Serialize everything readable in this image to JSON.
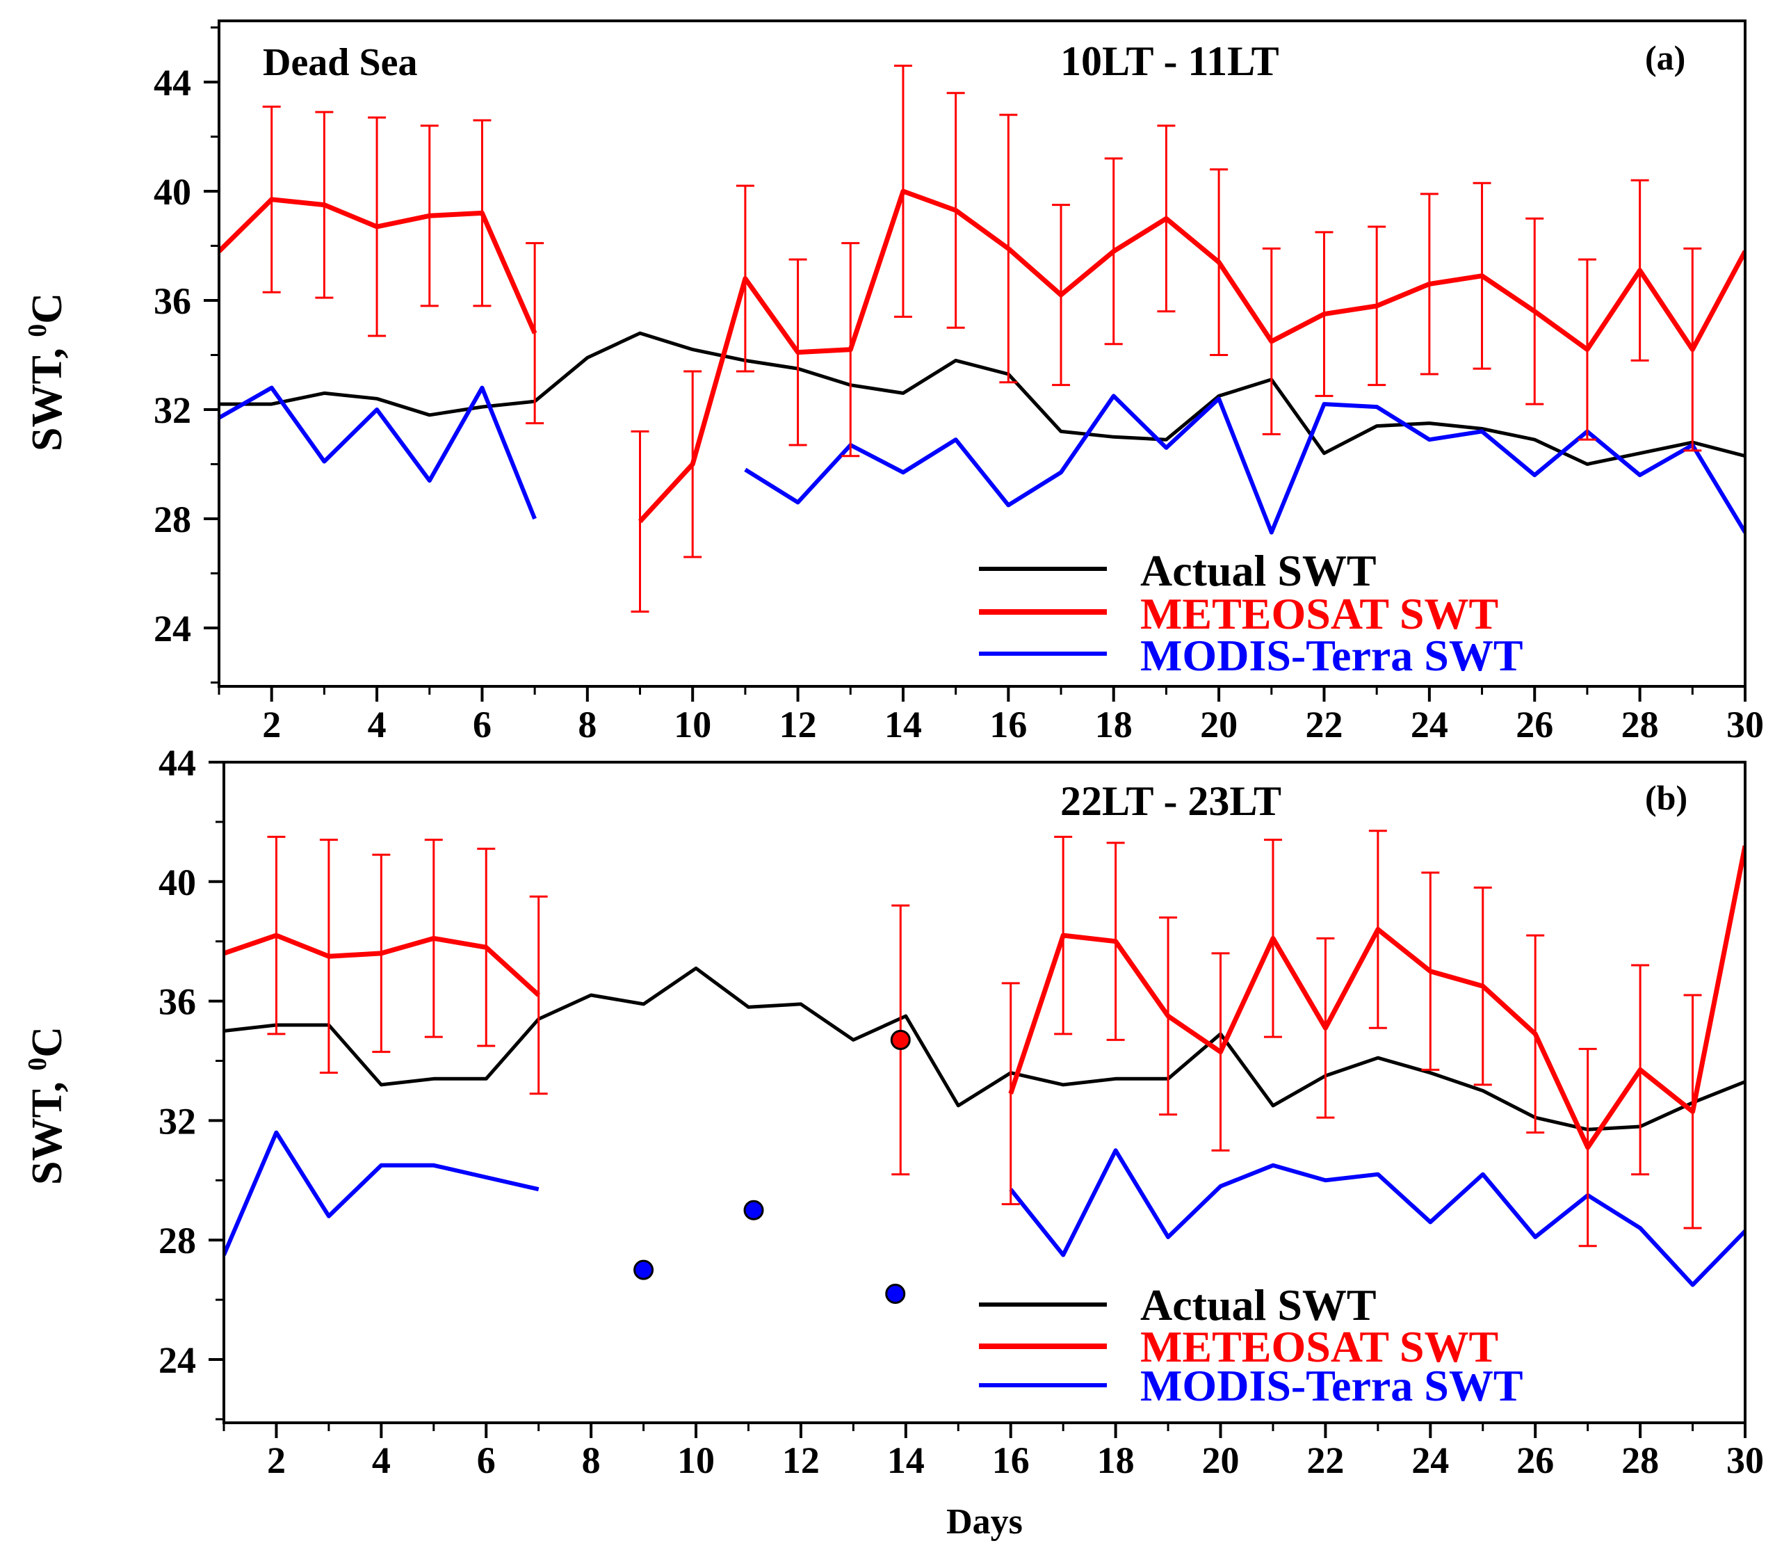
{
  "chart_data": [
    {
      "type": "line",
      "panel_label": "(a)",
      "site_label": "Dead Sea",
      "time_label": "10LT - 11LT",
      "xlabel": "",
      "ylabel": "SWT, °C",
      "ylabel_main": "SWT, ",
      "ylabel_degree": "0",
      "ylabel_unit": "C",
      "xlim": [
        1,
        30
      ],
      "ylim": [
        22,
        46
      ],
      "x_ticks": [
        2,
        4,
        6,
        8,
        10,
        12,
        14,
        16,
        18,
        20,
        22,
        24,
        26,
        28,
        30
      ],
      "y_ticks": [
        24,
        28,
        32,
        36,
        40,
        44
      ],
      "legend": [
        "Actual SWT",
        "METEOSAT SWT",
        "MODIS-Terra SWT"
      ],
      "legend_position": "bottom-right",
      "series": [
        {
          "name": "Actual SWT",
          "color": "#000000",
          "x": [
            1,
            2,
            3,
            4,
            5,
            6,
            7,
            8,
            9,
            10,
            11,
            12,
            13,
            14,
            15,
            16,
            17,
            18,
            19,
            20,
            21,
            22,
            23,
            24,
            25,
            26,
            27,
            28,
            29,
            30
          ],
          "values": [
            32.2,
            32.2,
            32.6,
            32.4,
            31.8,
            32.1,
            32.3,
            33.9,
            34.8,
            34.2,
            33.8,
            33.5,
            32.9,
            32.6,
            33.8,
            33.3,
            31.2,
            31.0,
            30.9,
            32.5,
            33.1,
            30.4,
            31.4,
            31.5,
            31.3,
            30.9,
            30.0,
            30.4,
            30.8,
            30.3
          ]
        },
        {
          "name": "METEOSAT SWT",
          "color": "#ff0000",
          "x": [
            1,
            2,
            3,
            4,
            5,
            6,
            7,
            8,
            9,
            10,
            11,
            12,
            13,
            14,
            15,
            16,
            17,
            18,
            19,
            20,
            21,
            22,
            23,
            24,
            25,
            26,
            27,
            28,
            29,
            30
          ],
          "values": [
            37.8,
            39.7,
            39.5,
            38.7,
            39.1,
            39.2,
            34.8,
            null,
            27.9,
            30.0,
            36.8,
            34.1,
            34.2,
            40.0,
            39.3,
            37.9,
            36.2,
            37.8,
            39.0,
            37.4,
            34.5,
            35.5,
            35.8,
            36.6,
            36.9,
            35.6,
            34.2,
            37.1,
            34.2,
            37.8
          ],
          "error": [
            null,
            3.4,
            3.4,
            4.0,
            3.3,
            3.4,
            3.3,
            null,
            3.3,
            3.4,
            3.4,
            3.4,
            3.9,
            4.6,
            4.3,
            4.9,
            3.3,
            3.4,
            3.4,
            3.4,
            3.4,
            3.0,
            2.9,
            3.3,
            3.4,
            3.4,
            3.3,
            3.3,
            3.7,
            null
          ]
        },
        {
          "name": "MODIS-Terra SWT",
          "color": "#0000ff",
          "x": [
            1,
            2,
            3,
            4,
            5,
            6,
            7,
            8,
            9,
            10,
            11,
            12,
            13,
            14,
            15,
            16,
            17,
            18,
            19,
            20,
            21,
            22,
            23,
            24,
            25,
            26,
            27,
            28,
            29,
            30
          ],
          "values": [
            31.7,
            32.8,
            30.1,
            32.0,
            29.4,
            32.8,
            28.0,
            null,
            null,
            null,
            29.8,
            28.6,
            30.7,
            29.7,
            30.9,
            28.5,
            29.7,
            32.5,
            30.6,
            32.4,
            27.5,
            32.2,
            32.1,
            30.9,
            31.2,
            29.6,
            31.2,
            29.6,
            30.7,
            27.5
          ]
        }
      ],
      "points": []
    },
    {
      "type": "line",
      "panel_label": "(b)",
      "site_label": "",
      "time_label": "22LT - 23LT",
      "xlabel": "Days",
      "ylabel": "SWT, °C",
      "ylabel_main": "SWT, ",
      "ylabel_degree": "0",
      "ylabel_unit": "C",
      "xlim": [
        1,
        30
      ],
      "ylim": [
        22,
        44
      ],
      "x_ticks": [
        2,
        4,
        6,
        8,
        10,
        12,
        14,
        16,
        18,
        20,
        22,
        24,
        26,
        28,
        30
      ],
      "y_ticks": [
        24,
        28,
        32,
        36,
        40,
        44
      ],
      "legend": [
        "Actual SWT",
        "METEOSAT SWT",
        "MODIS-Terra SWT"
      ],
      "legend_position": "bottom-right",
      "series": [
        {
          "name": "Actual SWT",
          "color": "#000000",
          "x": [
            1,
            2,
            3,
            4,
            5,
            6,
            7,
            8,
            9,
            10,
            11,
            12,
            13,
            14,
            15,
            16,
            17,
            18,
            19,
            20,
            21,
            22,
            23,
            24,
            25,
            26,
            27,
            28,
            29,
            30
          ],
          "values": [
            35.0,
            35.2,
            35.2,
            33.2,
            33.4,
            33.4,
            35.4,
            36.2,
            35.9,
            37.1,
            35.8,
            35.9,
            34.7,
            35.5,
            32.5,
            33.6,
            33.2,
            33.4,
            33.4,
            34.9,
            32.5,
            33.5,
            34.1,
            33.6,
            33.0,
            32.1,
            31.7,
            31.8,
            32.6,
            33.3
          ]
        },
        {
          "name": "METEOSAT SWT",
          "color": "#ff0000",
          "x": [
            1,
            2,
            3,
            4,
            5,
            6,
            7,
            8,
            9,
            10,
            11,
            12,
            13,
            14,
            15,
            16,
            17,
            18,
            19,
            20,
            21,
            22,
            23,
            24,
            25,
            26,
            27,
            28,
            29,
            30
          ],
          "values": [
            37.6,
            38.2,
            37.5,
            37.6,
            38.1,
            37.8,
            36.2,
            null,
            null,
            null,
            null,
            null,
            null,
            null,
            null,
            32.9,
            38.2,
            38.0,
            35.5,
            34.3,
            38.1,
            35.1,
            38.4,
            37.0,
            36.5,
            34.9,
            31.1,
            33.7,
            32.3,
            41.2
          ],
          "error": [
            null,
            3.3,
            3.9,
            3.3,
            3.3,
            3.3,
            3.3,
            null,
            null,
            null,
            null,
            null,
            null,
            null,
            null,
            3.7,
            3.3,
            3.3,
            3.3,
            3.3,
            3.3,
            3.0,
            3.3,
            3.3,
            3.3,
            3.3,
            3.3,
            3.5,
            3.9,
            null
          ]
        },
        {
          "name": "MODIS-Terra SWT",
          "color": "#0000ff",
          "x": [
            1,
            2,
            3,
            4,
            5,
            6,
            7,
            8,
            9,
            10,
            11,
            12,
            13,
            14,
            15,
            16,
            17,
            18,
            19,
            20,
            21,
            22,
            23,
            24,
            25,
            26,
            27,
            28,
            29,
            30
          ],
          "values": [
            27.5,
            31.6,
            28.8,
            30.5,
            30.5,
            30.1,
            29.7,
            null,
            null,
            null,
            null,
            null,
            null,
            null,
            null,
            29.7,
            27.5,
            31.0,
            28.1,
            29.8,
            30.5,
            30.0,
            30.2,
            28.6,
            30.2,
            28.1,
            29.5,
            28.4,
            26.5,
            28.3
          ]
        }
      ],
      "points": [
        {
          "series": "MODIS-Terra SWT",
          "x": 9.0,
          "y": 27.0,
          "color": "#0000ff"
        },
        {
          "series": "MODIS-Terra SWT",
          "x": 11.1,
          "y": 29.0,
          "color": "#0000ff"
        },
        {
          "series": "MODIS-Terra SWT",
          "x": 13.8,
          "y": 26.2,
          "color": "#0000ff"
        },
        {
          "series": "METEOSAT SWT",
          "x": 13.9,
          "y": 34.7,
          "color": "#ff0000",
          "error": 4.5
        }
      ]
    }
  ]
}
